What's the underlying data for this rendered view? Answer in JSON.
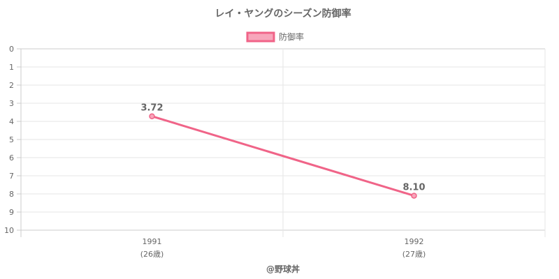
{
  "chart_data": {
    "type": "line",
    "title": "レイ・ヤングのシーズン防御率",
    "categories": [
      "1991",
      "1992"
    ],
    "category_sublabels": [
      "(26歳)",
      "(27歳)"
    ],
    "series": [
      {
        "name": "防御率",
        "values": [
          3.72,
          8.1
        ],
        "labels": [
          "3.72",
          "8.10"
        ],
        "color": "#f06488"
      }
    ],
    "y_ticks": [
      "0",
      "1",
      "2",
      "3",
      "4",
      "5",
      "6",
      "7",
      "8",
      "9",
      "10"
    ],
    "ylim": [
      0,
      10
    ],
    "y_reversed": true,
    "grid": true,
    "legend_position": "top-center",
    "credit": "@野球丼"
  }
}
